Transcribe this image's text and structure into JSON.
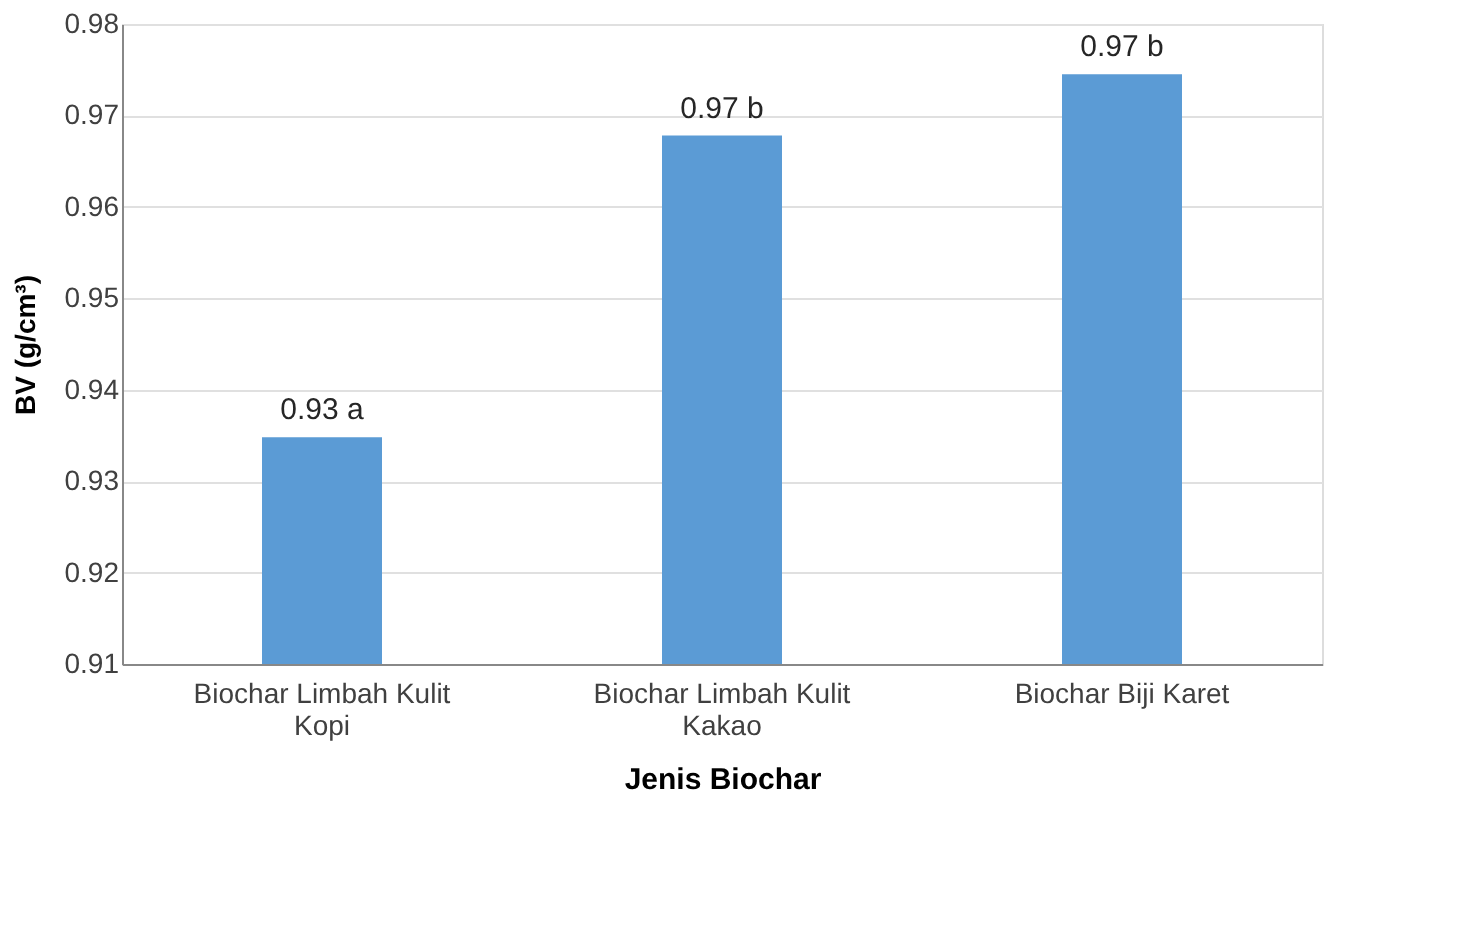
{
  "chart_data": {
    "type": "bar",
    "xlabel": "Jenis Biochar",
    "ylabel": "BV (g/cm³)",
    "categories": [
      "Biochar Limbah Kulit Kopi",
      "Biochar Limbah Kulit Kakao",
      "Biochar Biji Karet"
    ],
    "values": [
      0.9348,
      0.9678,
      0.9745
    ],
    "value_labels": [
      "0.93 a",
      "0.97 b",
      "0.97 b"
    ],
    "color": "#5b9bd5",
    "ylim": [
      0.91,
      0.98
    ],
    "yticks": [
      0.91,
      0.92,
      0.93,
      0.94,
      0.95,
      0.96,
      0.97,
      0.98
    ],
    "grid": "y"
  }
}
